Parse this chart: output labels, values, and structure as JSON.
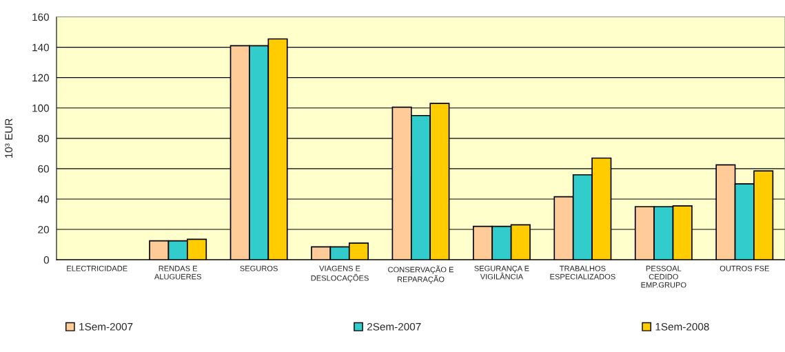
{
  "chart_data": {
    "type": "bar",
    "ylabel": "10³ EUR",
    "categories": [
      "ELECTRICIDADE",
      "RENDAS E\nALUGUERES",
      "SEGUROS",
      "VIAGENS E\nDESLOCAÇÕES",
      "CONSERVAÇÃO E\nREPARAÇÃO",
      "SEGURANÇA E\nVIGILÂNCIA",
      "TRABALHOS\nESPECIALIZADOS",
      "PESSOAL\nCEDIDO\nEMP.GRUPO",
      "OUTROS FSE"
    ],
    "series": [
      {
        "name": "1Sem-2007",
        "color": "#ffcc99",
        "values": [
          null,
          12.5,
          141,
          8.5,
          100.5,
          22,
          41.5,
          35,
          62.5
        ]
      },
      {
        "name": "2Sem-2007",
        "color": "#33cccc",
        "values": [
          null,
          12.5,
          141,
          8.5,
          95,
          22,
          56,
          35,
          50
        ]
      },
      {
        "name": "1Sem-2008",
        "color": "#ffcc00",
        "values": [
          null,
          13.5,
          145.5,
          11,
          103,
          23,
          67,
          35.5,
          58.5
        ]
      }
    ],
    "ylim": [
      0,
      160
    ],
    "yticks": [
      0,
      20,
      40,
      60,
      80,
      100,
      120,
      140,
      160
    ],
    "grid": "y",
    "legend": "bottom"
  }
}
